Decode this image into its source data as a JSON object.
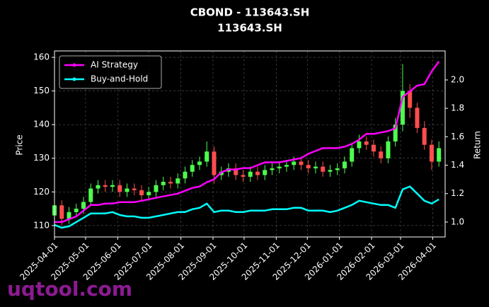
{
  "chart_data": {
    "type": "candlestick",
    "title": "CBOND - 113643.SH",
    "subtitle": "113643.SH",
    "ylabel": "Price",
    "y2label": "Return",
    "x": [
      "2025-04-01",
      "2025-04-08",
      "2025-04-15",
      "2025-04-22",
      "2025-04-29",
      "2025-05-06",
      "2025-05-13",
      "2025-05-20",
      "2025-05-27",
      "2025-06-03",
      "2025-06-10",
      "2025-06-17",
      "2025-06-24",
      "2025-07-01",
      "2025-07-08",
      "2025-07-15",
      "2025-07-22",
      "2025-07-29",
      "2025-08-05",
      "2025-08-12",
      "2025-08-19",
      "2025-08-26",
      "2025-09-02",
      "2025-09-09",
      "2025-09-16",
      "2025-09-23",
      "2025-09-30",
      "2025-10-07",
      "2025-10-14",
      "2025-10-21",
      "2025-10-28",
      "2025-11-04",
      "2025-11-11",
      "2025-11-18",
      "2025-11-25",
      "2025-12-02",
      "2025-12-09",
      "2025-12-16",
      "2025-12-23",
      "2025-12-30",
      "2026-01-06",
      "2026-01-13",
      "2026-01-20",
      "2026-01-27",
      "2026-02-03",
      "2026-02-10",
      "2026-02-17",
      "2026-02-24",
      "2026-03-03",
      "2026-03-10",
      "2026-03-17",
      "2026-03-24",
      "2026-03-31",
      "2026-04-07"
    ],
    "open": [
      113,
      116,
      112,
      114,
      115,
      117,
      121,
      122,
      121.5,
      122,
      120,
      121,
      120.5,
      119,
      120,
      122,
      123,
      122.5,
      124,
      126,
      128,
      129,
      132,
      125,
      126,
      127,
      125,
      124.5,
      126,
      125,
      126.5,
      127,
      127.5,
      128,
      129,
      128,
      127,
      127.5,
      126,
      126.5,
      127,
      129,
      133,
      135,
      134,
      132,
      130,
      135,
      140,
      150,
      145,
      139,
      134,
      129
    ],
    "high": [
      117.5,
      117.5,
      115.5,
      116.5,
      118.5,
      122.5,
      123.5,
      123.5,
      123.5,
      123.5,
      122.5,
      122.5,
      122,
      121.5,
      123.5,
      124.5,
      124.5,
      125.5,
      127.5,
      129.5,
      130.5,
      135,
      133.5,
      127.5,
      128.5,
      128.5,
      126.5,
      127.5,
      127.5,
      128,
      128.5,
      129,
      129.5,
      130.5,
      130.5,
      129.5,
      129,
      129,
      128,
      128.5,
      130.5,
      134.5,
      137,
      136.5,
      135.5,
      133.5,
      136.5,
      142,
      158,
      152,
      146.5,
      141,
      135.5,
      135
    ],
    "low": [
      111.5,
      110,
      110.5,
      112.5,
      113.5,
      116,
      119.5,
      120,
      120,
      118.5,
      118.5,
      119,
      117.5,
      117.5,
      118.5,
      120.5,
      121,
      121,
      122.5,
      124.5,
      126.5,
      127.5,
      122.5,
      123.5,
      124.5,
      123.5,
      123,
      123,
      123.5,
      123.5,
      125,
      125.5,
      126,
      126.5,
      126.5,
      125.5,
      125.5,
      124.5,
      124.5,
      125,
      125.5,
      127.5,
      131.5,
      132.5,
      130.5,
      128.5,
      128.5,
      133.5,
      138,
      142,
      137.5,
      132.5,
      126.5,
      127.5
    ],
    "close": [
      116,
      112,
      114,
      115,
      117,
      121,
      122,
      121.5,
      122,
      120,
      121,
      120.5,
      119,
      120,
      122,
      123,
      122.5,
      124,
      126,
      128,
      129,
      132,
      125,
      126,
      127,
      125,
      124.5,
      126,
      125,
      126.5,
      127,
      127.5,
      128,
      129,
      128,
      127,
      127.5,
      126,
      126.5,
      127,
      129,
      133,
      135,
      134,
      132,
      130,
      135,
      140,
      150,
      145,
      139,
      134,
      129,
      133
    ],
    "up_color": "#4dff4d",
    "down_color": "#ff4d4d",
    "series": [
      {
        "name": "AI Strategy",
        "color": "#ff00ff",
        "axis": "y2",
        "values": [
          1.0,
          1.0,
          1.02,
          1.04,
          1.08,
          1.12,
          1.12,
          1.13,
          1.13,
          1.14,
          1.14,
          1.14,
          1.15,
          1.16,
          1.17,
          1.18,
          1.19,
          1.2,
          1.22,
          1.24,
          1.25,
          1.28,
          1.3,
          1.35,
          1.37,
          1.37,
          1.38,
          1.38,
          1.4,
          1.42,
          1.42,
          1.42,
          1.43,
          1.44,
          1.45,
          1.48,
          1.5,
          1.52,
          1.52,
          1.52,
          1.53,
          1.55,
          1.58,
          1.62,
          1.62,
          1.63,
          1.64,
          1.66,
          1.88,
          1.92,
          1.96,
          1.97,
          2.06,
          2.13
        ]
      },
      {
        "name": "Buy-and-Hold",
        "color": "#00ffff",
        "axis": "y2",
        "values": [
          0.98,
          0.96,
          0.97,
          1.0,
          1.03,
          1.06,
          1.06,
          1.06,
          1.07,
          1.05,
          1.04,
          1.04,
          1.03,
          1.03,
          1.04,
          1.05,
          1.06,
          1.07,
          1.07,
          1.09,
          1.1,
          1.13,
          1.07,
          1.08,
          1.08,
          1.07,
          1.07,
          1.08,
          1.08,
          1.08,
          1.09,
          1.09,
          1.09,
          1.1,
          1.1,
          1.08,
          1.08,
          1.08,
          1.07,
          1.08,
          1.1,
          1.12,
          1.15,
          1.14,
          1.13,
          1.12,
          1.12,
          1.1,
          1.23,
          1.25,
          1.2,
          1.15,
          1.13,
          1.16
        ]
      }
    ],
    "xlim": [
      "2025-04-01",
      "2026-04-13"
    ],
    "xticks": [
      "2025-04-01",
      "2025-05-01",
      "2025-06-01",
      "2025-07-01",
      "2025-08-01",
      "2025-09-01",
      "2025-10-01",
      "2025-11-01",
      "2025-12-01",
      "2026-01-01",
      "2026-02-01",
      "2026-03-01",
      "2026-04-01"
    ],
    "ylim": [
      106.6,
      161.9
    ],
    "yticks": [
      110,
      120,
      130,
      140,
      150,
      160
    ],
    "y2lim": [
      0.895,
      2.204
    ],
    "y2ticks": [
      {
        "value": 1,
        "label": "1.0"
      },
      1.2,
      1.4,
      1.6,
      1.8,
      {
        "value": 2,
        "label": "2.0"
      }
    ],
    "grid": true,
    "legend": "upper left"
  },
  "watermark": "uqtool.com"
}
